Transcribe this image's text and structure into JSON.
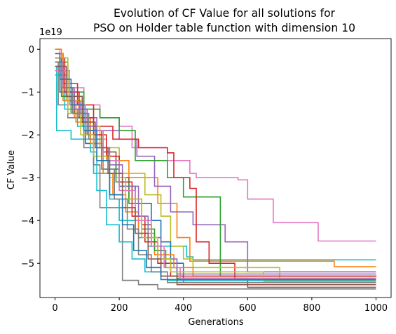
{
  "chart_data": {
    "type": "line",
    "title_lines": [
      "Evolution of CF Value for all solutions for",
      "PSO on Holder table function with dimension 10"
    ],
    "xlabel": "Generations",
    "ylabel": "CF Value",
    "y_offset_text": "1e19",
    "xlim": [
      -47,
      1047
    ],
    "ylim": [
      -5.8,
      0.25
    ],
    "x_ticks": [
      0,
      200,
      400,
      600,
      800,
      1000
    ],
    "x_tick_labels": [
      "0",
      "200",
      "400",
      "600",
      "800",
      "1000"
    ],
    "y_ticks": [
      0,
      -1,
      -2,
      -3,
      -4,
      -5
    ],
    "y_tick_labels": [
      "0",
      "−1",
      "−2",
      "−3",
      "−4",
      "−5"
    ],
    "grid": false,
    "legend": "none",
    "palette": [
      "#1f77b4",
      "#ff7f0e",
      "#2ca02c",
      "#d62728",
      "#9467bd",
      "#8c564b",
      "#e377c2",
      "#7f7f7f",
      "#bcbd22",
      "#17becf"
    ],
    "series": [
      {
        "color": "#e377c2",
        "points": [
          [
            0,
            0
          ],
          [
            15,
            -0.6
          ],
          [
            40,
            -0.9
          ],
          [
            90,
            -1.3
          ],
          [
            140,
            -1.6
          ],
          [
            200,
            -1.8
          ],
          [
            240,
            -2.3
          ],
          [
            350,
            -2.6
          ],
          [
            420,
            -2.9
          ],
          [
            440,
            -3.0
          ],
          [
            570,
            -3.05
          ],
          [
            600,
            -3.5
          ],
          [
            680,
            -4.05
          ],
          [
            820,
            -4.48
          ],
          [
            1000,
            -4.48
          ]
        ]
      },
      {
        "color": "#17becf",
        "points": [
          [
            0,
            -0.4
          ],
          [
            5,
            -1.9
          ],
          [
            50,
            -2.1
          ],
          [
            120,
            -2.9
          ],
          [
            170,
            -3.5
          ],
          [
            200,
            -4.0
          ],
          [
            260,
            -4.4
          ],
          [
            290,
            -4.6
          ],
          [
            410,
            -4.85
          ],
          [
            430,
            -4.92
          ],
          [
            1000,
            -4.92
          ]
        ]
      },
      {
        "color": "#ff7f0e",
        "points": [
          [
            0,
            0
          ],
          [
            20,
            -1.0
          ],
          [
            60,
            -1.6
          ],
          [
            110,
            -2.1
          ],
          [
            160,
            -2.6
          ],
          [
            230,
            -3.0
          ],
          [
            320,
            -3.6
          ],
          [
            380,
            -4.4
          ],
          [
            420,
            -4.95
          ],
          [
            870,
            -5.08
          ],
          [
            1000,
            -5.08
          ]
        ]
      },
      {
        "color": "#9467bd",
        "points": [
          [
            0,
            -0.2
          ],
          [
            30,
            -1.2
          ],
          [
            80,
            -1.6
          ],
          [
            130,
            -1.9
          ],
          [
            200,
            -2.1
          ],
          [
            255,
            -2.5
          ],
          [
            310,
            -3.2
          ],
          [
            360,
            -3.8
          ],
          [
            430,
            -4.1
          ],
          [
            530,
            -4.5
          ],
          [
            600,
            -5.2
          ],
          [
            1000,
            -5.2
          ]
        ]
      },
      {
        "color": "#2ca02c",
        "points": [
          [
            0,
            -0.3
          ],
          [
            40,
            -1.0
          ],
          [
            90,
            -1.4
          ],
          [
            140,
            -1.6
          ],
          [
            200,
            -1.9
          ],
          [
            250,
            -2.6
          ],
          [
            350,
            -3.0
          ],
          [
            400,
            -3.45
          ],
          [
            510,
            -3.45
          ],
          [
            515,
            -5.3
          ],
          [
            1000,
            -5.3
          ]
        ]
      },
      {
        "color": "#d62728",
        "points": [
          [
            0,
            -0.1
          ],
          [
            25,
            -0.8
          ],
          [
            70,
            -1.3
          ],
          [
            120,
            -1.8
          ],
          [
            180,
            -2.1
          ],
          [
            260,
            -2.3
          ],
          [
            350,
            -2.42
          ],
          [
            370,
            -3.0
          ],
          [
            420,
            -3.25
          ],
          [
            440,
            -4.5
          ],
          [
            480,
            -5.0
          ],
          [
            560,
            -5.38
          ],
          [
            1000,
            -5.38
          ]
        ]
      },
      {
        "color": "#bcbd22",
        "points": [
          [
            0,
            -0.5
          ],
          [
            35,
            -1.2
          ],
          [
            85,
            -1.8
          ],
          [
            140,
            -2.3
          ],
          [
            200,
            -2.9
          ],
          [
            280,
            -3.4
          ],
          [
            330,
            -3.9
          ],
          [
            360,
            -4.6
          ],
          [
            400,
            -4.9
          ],
          [
            430,
            -5.1
          ],
          [
            690,
            -5.1
          ],
          [
            700,
            -5.42
          ],
          [
            1000,
            -5.42
          ]
        ]
      },
      {
        "color": "#8c564b",
        "points": [
          [
            0,
            -0.2
          ],
          [
            20,
            -1.0
          ],
          [
            60,
            -1.5
          ],
          [
            100,
            -2.0
          ],
          [
            150,
            -2.4
          ],
          [
            190,
            -3.0
          ],
          [
            230,
            -3.5
          ],
          [
            270,
            -4.1
          ],
          [
            300,
            -4.6
          ],
          [
            330,
            -5.3
          ],
          [
            400,
            -5.45
          ],
          [
            600,
            -5.56
          ],
          [
            1000,
            -5.56
          ]
        ]
      },
      {
        "color": "#7f7f7f",
        "points": [
          [
            0,
            -0.3
          ],
          [
            10,
            -1.3
          ],
          [
            40,
            -1.6
          ],
          [
            90,
            -2.3
          ],
          [
            120,
            -2.7
          ],
          [
            140,
            -3.7
          ],
          [
            200,
            -3.7
          ],
          [
            210,
            -5.4
          ],
          [
            260,
            -5.5
          ],
          [
            320,
            -5.6
          ],
          [
            1000,
            -5.6
          ]
        ]
      },
      {
        "color": "#1f77b4",
        "points": [
          [
            0,
            -0.2
          ],
          [
            15,
            -1.0
          ],
          [
            55,
            -1.5
          ],
          [
            95,
            -2.2
          ],
          [
            150,
            -2.8
          ],
          [
            200,
            -3.2
          ],
          [
            250,
            -3.6
          ],
          [
            300,
            -4.0
          ],
          [
            330,
            -4.5
          ],
          [
            360,
            -5.0
          ],
          [
            400,
            -5.35
          ],
          [
            600,
            -5.45
          ],
          [
            1000,
            -5.45
          ]
        ]
      },
      {
        "color": "#17becf",
        "points": [
          [
            0,
            -0.6
          ],
          [
            30,
            -1.4
          ],
          [
            70,
            -1.8
          ],
          [
            110,
            -2.4
          ],
          [
            130,
            -3.3
          ],
          [
            160,
            -4.1
          ],
          [
            200,
            -4.5
          ],
          [
            240,
            -4.9
          ],
          [
            280,
            -5.2
          ],
          [
            350,
            -5.4
          ],
          [
            1000,
            -5.4
          ]
        ]
      },
      {
        "color": "#ff7f0e",
        "points": [
          [
            0,
            -0.1
          ],
          [
            25,
            -1.2
          ],
          [
            65,
            -1.7
          ],
          [
            110,
            -2.2
          ],
          [
            150,
            -2.9
          ],
          [
            180,
            -3.4
          ],
          [
            220,
            -3.8
          ],
          [
            260,
            -4.3
          ],
          [
            310,
            -4.8
          ],
          [
            370,
            -5.1
          ],
          [
            430,
            -5.3
          ],
          [
            1000,
            -5.32
          ]
        ]
      },
      {
        "color": "#2ca02c",
        "points": [
          [
            0,
            -0.4
          ],
          [
            20,
            -1.1
          ],
          [
            50,
            -1.5
          ],
          [
            100,
            -1.9
          ],
          [
            145,
            -2.5
          ],
          [
            190,
            -3.1
          ],
          [
            230,
            -3.6
          ],
          [
            270,
            -4.2
          ],
          [
            310,
            -4.7
          ],
          [
            345,
            -5.1
          ],
          [
            380,
            -5.35
          ],
          [
            1000,
            -5.35
          ]
        ]
      },
      {
        "color": "#d62728",
        "points": [
          [
            0,
            -0.2
          ],
          [
            30,
            -1.0
          ],
          [
            75,
            -1.6
          ],
          [
            120,
            -2.0
          ],
          [
            160,
            -2.5
          ],
          [
            200,
            -3.1
          ],
          [
            240,
            -3.9
          ],
          [
            280,
            -4.5
          ],
          [
            320,
            -5.0
          ],
          [
            360,
            -5.3
          ],
          [
            1000,
            -5.3
          ]
        ]
      },
      {
        "color": "#e377c2",
        "points": [
          [
            0,
            -0.5
          ],
          [
            45,
            -1.3
          ],
          [
            95,
            -1.9
          ],
          [
            150,
            -2.6
          ],
          [
            200,
            -3.3
          ],
          [
            250,
            -4.0
          ],
          [
            300,
            -4.6
          ],
          [
            340,
            -5.1
          ],
          [
            390,
            -5.35
          ],
          [
            1000,
            -5.35
          ]
        ]
      },
      {
        "color": "#9467bd",
        "points": [
          [
            0,
            -0.3
          ],
          [
            25,
            -0.9
          ],
          [
            60,
            -1.4
          ],
          [
            100,
            -1.8
          ],
          [
            130,
            -2.3
          ],
          [
            170,
            -2.7
          ],
          [
            210,
            -3.2
          ],
          [
            260,
            -3.9
          ],
          [
            290,
            -4.4
          ],
          [
            330,
            -4.9
          ],
          [
            380,
            -5.25
          ],
          [
            1000,
            -5.25
          ]
        ]
      },
      {
        "color": "#bcbd22",
        "points": [
          [
            0,
            -0.2
          ],
          [
            40,
            -1.5
          ],
          [
            80,
            -2.0
          ],
          [
            120,
            -2.5
          ],
          [
            170,
            -3.0
          ],
          [
            220,
            -3.5
          ],
          [
            270,
            -4.4
          ],
          [
            320,
            -4.9
          ],
          [
            360,
            -5.2
          ],
          [
            640,
            -5.2
          ],
          [
            650,
            -5.42
          ],
          [
            1000,
            -5.42
          ]
        ]
      },
      {
        "color": "#8c564b",
        "points": [
          [
            0,
            -0.4
          ],
          [
            35,
            -1.1
          ],
          [
            85,
            -1.7
          ],
          [
            125,
            -2.3
          ],
          [
            165,
            -2.9
          ],
          [
            210,
            -3.7
          ],
          [
            250,
            -4.3
          ],
          [
            290,
            -4.9
          ],
          [
            330,
            -5.3
          ],
          [
            380,
            -5.5
          ],
          [
            1000,
            -5.5
          ]
        ]
      },
      {
        "color": "#7f7f7f",
        "points": [
          [
            0,
            -0.3
          ],
          [
            20,
            -0.9
          ],
          [
            55,
            -1.5
          ],
          [
            105,
            -2.1
          ],
          [
            145,
            -2.8
          ],
          [
            185,
            -3.5
          ],
          [
            225,
            -4.2
          ],
          [
            260,
            -4.8
          ],
          [
            300,
            -5.2
          ],
          [
            350,
            -5.45
          ],
          [
            1000,
            -5.45
          ]
        ]
      },
      {
        "color": "#1f77b4",
        "points": [
          [
            0,
            -0.1
          ],
          [
            15,
            -0.7
          ],
          [
            50,
            -1.3
          ],
          [
            90,
            -1.9
          ],
          [
            130,
            -2.6
          ],
          [
            170,
            -3.4
          ],
          [
            210,
            -4.1
          ],
          [
            245,
            -4.7
          ],
          [
            285,
            -5.1
          ],
          [
            330,
            -5.38
          ],
          [
            1000,
            -5.38
          ]
        ]
      }
    ]
  }
}
